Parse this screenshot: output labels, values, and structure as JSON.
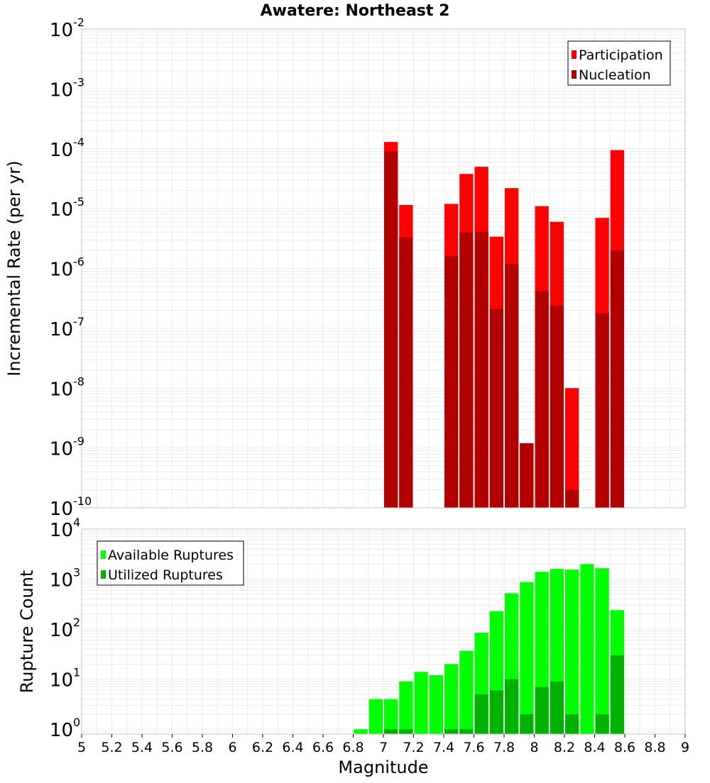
{
  "figure": {
    "title": "Awatere: Northeast 2",
    "xlabel": "Magnitude"
  },
  "colors": {
    "participation": "#ff0000",
    "nucleation": "#b20000",
    "available": "#00ff00",
    "utilized": "#00b200",
    "grid": "#ebebeb",
    "frame": "#c0c0c0"
  },
  "chart_data": [
    {
      "type": "bar",
      "panel": "rates",
      "ylabel": "Incremental Rate (per yr)",
      "yscale": "log",
      "ylim": [
        1e-10,
        0.01
      ],
      "xlim": [
        5,
        9
      ],
      "bin_width": 0.1,
      "grid": true,
      "legend_position": "top-right",
      "x": [
        7.05,
        7.15,
        7.45,
        7.55,
        7.65,
        7.75,
        7.85,
        7.95,
        8.05,
        8.15,
        8.25,
        8.45,
        8.55
      ],
      "series": [
        {
          "name": "Participation",
          "color": "#ff0000",
          "values": [
            0.00013,
            1.15e-05,
            1.2e-05,
            3.8e-05,
            5e-05,
            3.4e-06,
            2.2e-05,
            1.2e-09,
            1.1e-05,
            6e-06,
            1e-08,
            7e-06,
            9.5e-05
          ]
        },
        {
          "name": "Nucleation",
          "color": "#b20000",
          "values": [
            9e-05,
            3.3e-06,
            1.6e-06,
            4e-06,
            4.1e-06,
            2.1e-07,
            1.2e-06,
            1.2e-09,
            4.2e-07,
            2.4e-07,
            2e-10,
            1.8e-07,
            2e-06
          ]
        }
      ]
    },
    {
      "type": "bar",
      "panel": "counts",
      "ylabel": "Rupture Count",
      "yscale": "log",
      "ylim": [
        0.8,
        10000
      ],
      "xlim": [
        5,
        9
      ],
      "bin_width": 0.1,
      "grid": true,
      "legend_position": "top-left",
      "x": [
        6.85,
        6.95,
        7.05,
        7.15,
        7.25,
        7.35,
        7.45,
        7.55,
        7.65,
        7.75,
        7.85,
        7.95,
        8.05,
        8.15,
        8.25,
        8.35,
        8.45,
        8.55
      ],
      "series": [
        {
          "name": "Available Ruptures",
          "color": "#00ff00",
          "values": [
            1,
            4,
            4,
            9,
            14,
            12,
            20,
            37,
            85,
            230,
            520,
            870,
            1400,
            1600,
            1550,
            2000,
            1650,
            240
          ]
        },
        {
          "name": "Utilized Ruptures",
          "color": "#00b200",
          "values": [
            null,
            null,
            1,
            1,
            null,
            null,
            1,
            1,
            5,
            6,
            10,
            2,
            7,
            9,
            2,
            null,
            2,
            30
          ]
        }
      ]
    }
  ],
  "axes": {
    "x_ticks": [
      "5",
      "5.2",
      "5.4",
      "5.6",
      "5.8",
      "6",
      "6.2",
      "6.4",
      "6.6",
      "6.8",
      "7",
      "7.2",
      "7.4",
      "7.6",
      "7.8",
      "8",
      "8.2",
      "8.4",
      "8.6",
      "8.8",
      "9"
    ],
    "top_y_ticks": [
      {
        "base": "10",
        "exp": "-2"
      },
      {
        "base": "10",
        "exp": "-3"
      },
      {
        "base": "10",
        "exp": "-4"
      },
      {
        "base": "10",
        "exp": "-5"
      },
      {
        "base": "10",
        "exp": "-6"
      },
      {
        "base": "10",
        "exp": "-7"
      },
      {
        "base": "10",
        "exp": "-8"
      },
      {
        "base": "10",
        "exp": "-9"
      },
      {
        "base": "10",
        "exp": "-10"
      }
    ],
    "bottom_y_ticks": [
      {
        "base": "10",
        "exp": "4"
      },
      {
        "base": "10",
        "exp": "3"
      },
      {
        "base": "10",
        "exp": "2"
      },
      {
        "base": "10",
        "exp": "1"
      },
      {
        "base": "10",
        "exp": "0"
      }
    ]
  }
}
